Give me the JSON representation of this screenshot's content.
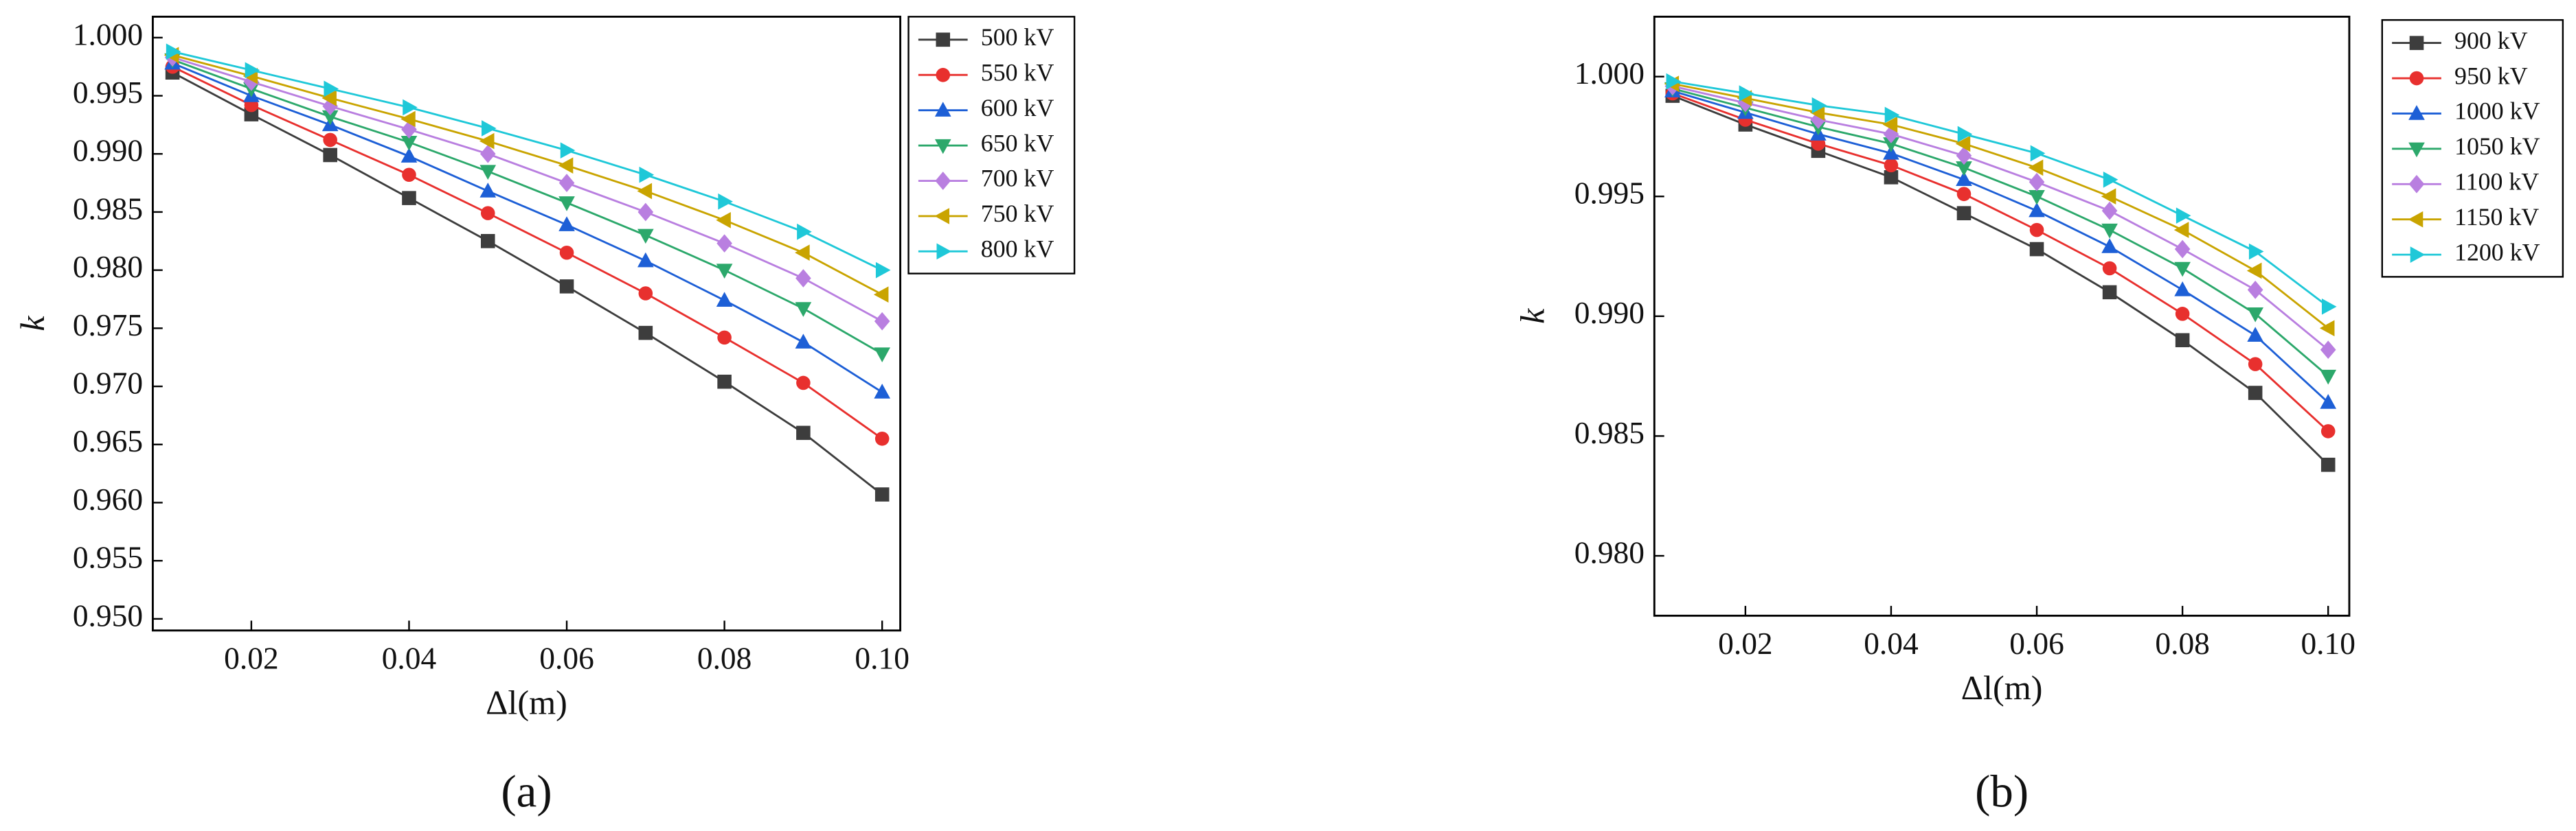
{
  "chart_data": [
    {
      "type": "line",
      "caption": "(a)",
      "xlabel": "Δl(m)",
      "ylabel": "k",
      "x": [
        0.01,
        0.02,
        0.03,
        0.04,
        0.05,
        0.06,
        0.07,
        0.08,
        0.09,
        0.1
      ],
      "xlim": [
        0.0075,
        0.1023
      ],
      "ylim": [
        0.949,
        1.0018
      ],
      "xticks": [
        0.02,
        0.04,
        0.06,
        0.08,
        {
          "value": 0.1,
          "label": "0.10"
        }
      ],
      "yticks": [
        {
          "value": 0.95,
          "label": "0.950"
        },
        0.955,
        {
          "value": 0.96,
          "label": "0.960"
        },
        0.965,
        {
          "value": 0.97,
          "label": "0.970"
        },
        0.975,
        {
          "value": 0.98,
          "label": "0.980"
        },
        0.985,
        {
          "value": 0.99,
          "label": "0.990"
        },
        0.995,
        {
          "value": 1,
          "label": "1.000"
        }
      ],
      "series": [
        {
          "name": "500 kV",
          "color": "#3d3d3d",
          "marker": "square",
          "values": [
            0.997,
            0.9934,
            0.9899,
            0.9862,
            0.9825,
            0.9786,
            0.9746,
            0.9704,
            0.966,
            0.9607
          ]
        },
        {
          "name": "550 kV",
          "color": "#e8302e",
          "marker": "circle",
          "values": [
            0.9975,
            0.9942,
            0.9912,
            0.9882,
            0.9849,
            0.9815,
            0.978,
            0.9742,
            0.9703,
            0.9655
          ]
        },
        {
          "name": "600 kV",
          "color": "#1d5fd6",
          "marker": "triangle-up",
          "values": [
            0.9978,
            0.995,
            0.9925,
            0.9898,
            0.9868,
            0.9839,
            0.9808,
            0.9774,
            0.9738,
            0.9695
          ]
        },
        {
          "name": "650 kV",
          "color": "#2ca86b",
          "marker": "triangle-down",
          "values": [
            0.9981,
            0.9956,
            0.9932,
            0.991,
            0.9885,
            0.9858,
            0.983,
            0.98,
            0.9767,
            0.9728
          ]
        },
        {
          "name": "700 kV",
          "color": "#b97fe0",
          "marker": "diamond",
          "values": [
            0.9983,
            0.9962,
            0.9941,
            0.9921,
            0.99,
            0.9875,
            0.985,
            0.9823,
            0.9793,
            0.9756
          ]
        },
        {
          "name": "750 kV",
          "color": "#c9a400",
          "marker": "triangle-left",
          "values": [
            0.9985,
            0.9967,
            0.9948,
            0.993,
            0.9911,
            0.989,
            0.9868,
            0.9843,
            0.9815,
            0.9779
          ]
        },
        {
          "name": "800 kV",
          "color": "#1fc8d8",
          "marker": "triangle-right",
          "values": [
            0.9988,
            0.9972,
            0.9956,
            0.994,
            0.9922,
            0.9903,
            0.9882,
            0.9859,
            0.9833,
            0.98
          ]
        }
      ]
    },
    {
      "type": "line",
      "caption": "(b)",
      "xlabel": "Δl(m)",
      "ylabel": "k",
      "x": [
        0.01,
        0.02,
        0.03,
        0.04,
        0.05,
        0.06,
        0.07,
        0.08,
        0.09,
        0.1
      ],
      "xlim": [
        0.0075,
        0.1029
      ],
      "ylim": [
        0.9775,
        1.0025
      ],
      "xticks": [
        0.02,
        0.04,
        0.06,
        0.08,
        {
          "value": 0.1,
          "label": "0.10"
        }
      ],
      "yticks": [
        {
          "value": 0.98,
          "label": "0.980"
        },
        0.985,
        {
          "value": 0.99,
          "label": "0.990"
        },
        0.995,
        {
          "value": 1,
          "label": "1.000"
        }
      ],
      "series": [
        {
          "name": "900 kV",
          "color": "#3d3d3d",
          "marker": "square",
          "values": [
            0.9992,
            0.998,
            0.9969,
            0.9958,
            0.9943,
            0.9928,
            0.991,
            0.989,
            0.9868,
            0.9838
          ]
        },
        {
          "name": "950 kV",
          "color": "#e8302e",
          "marker": "circle",
          "values": [
            0.9993,
            0.9982,
            0.9972,
            0.9963,
            0.9951,
            0.9936,
            0.992,
            0.9901,
            0.988,
            0.9852
          ]
        },
        {
          "name": "1000 kV",
          "color": "#1d5fd6",
          "marker": "triangle-up",
          "values": [
            0.9994,
            0.9985,
            0.9976,
            0.9968,
            0.9957,
            0.9944,
            0.9929,
            0.9911,
            0.9892,
            0.9864
          ]
        },
        {
          "name": "1050 kV",
          "color": "#2ca86b",
          "marker": "triangle-down",
          "values": [
            0.9995,
            0.9987,
            0.9979,
            0.9972,
            0.9962,
            0.995,
            0.9936,
            0.992,
            0.9901,
            0.9875
          ]
        },
        {
          "name": "1100 kV",
          "color": "#b97fe0",
          "marker": "diamond",
          "values": [
            0.9996,
            0.9989,
            0.9982,
            0.9976,
            0.9967,
            0.9956,
            0.9944,
            0.9928,
            0.9911,
            0.9886
          ]
        },
        {
          "name": "1150 kV",
          "color": "#c9a400",
          "marker": "triangle-left",
          "values": [
            0.9997,
            0.9991,
            0.9985,
            0.998,
            0.9972,
            0.9962,
            0.995,
            0.9936,
            0.9919,
            0.9895
          ]
        },
        {
          "name": "1200 kV",
          "color": "#1fc8d8",
          "marker": "triangle-right",
          "values": [
            0.9998,
            0.9993,
            0.9988,
            0.9984,
            0.9976,
            0.9968,
            0.9957,
            0.9942,
            0.9927,
            0.9904
          ]
        }
      ]
    }
  ]
}
